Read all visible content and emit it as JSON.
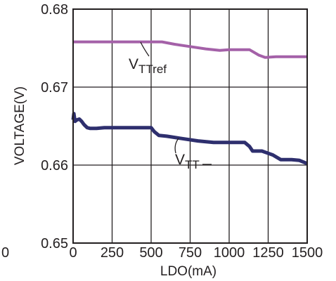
{
  "chart_data": {
    "type": "line",
    "xlabel": "LDO(mA)",
    "ylabel": "VOLTAGE(V)",
    "xlim": [
      0,
      1500
    ],
    "ylim": [
      0.65,
      0.68
    ],
    "xticks": [
      0,
      250,
      500,
      750,
      1000,
      1250,
      1500
    ],
    "xtick_labels": [
      "0",
      "250",
      "500",
      "750",
      "1000",
      "1250",
      "1500"
    ],
    "yticks": [
      0.65,
      0.66,
      0.67,
      0.68
    ],
    "ytick_labels": [
      "0.65",
      "0.66",
      "0.67",
      "0.68"
    ],
    "stray_label": "0",
    "grid": true,
    "series": [
      {
        "name": "VTTref",
        "label_main": "V",
        "label_sub": "TTref",
        "color": "#a461a8",
        "x": [
          0,
          100,
          200,
          300,
          400,
          500,
          570,
          650,
          750,
          850,
          940,
          1000,
          1050,
          1130,
          1190,
          1230,
          1300,
          1400,
          1500
        ],
        "y": [
          0.6758,
          0.6758,
          0.6758,
          0.6758,
          0.6758,
          0.6758,
          0.6758,
          0.6755,
          0.6752,
          0.6749,
          0.6747,
          0.6748,
          0.6748,
          0.6748,
          0.6741,
          0.6738,
          0.6739,
          0.6739,
          0.6739
        ]
      },
      {
        "name": "VTT",
        "label_main": "V",
        "label_sub": "TT",
        "color": "#2e2f6e",
        "x": [
          0,
          5,
          12,
          25,
          40,
          55,
          70,
          90,
          110,
          150,
          200,
          300,
          400,
          500,
          520,
          550,
          600,
          700,
          800,
          900,
          1000,
          1100,
          1130,
          1150,
          1210,
          1280,
          1330,
          1400,
          1450,
          1500
        ],
        "y": [
          0.6658,
          0.6666,
          0.6656,
          0.6658,
          0.6659,
          0.6656,
          0.6652,
          0.6648,
          0.6647,
          0.6647,
          0.6648,
          0.6648,
          0.6648,
          0.6648,
          0.6643,
          0.6638,
          0.6637,
          0.6634,
          0.6631,
          0.6629,
          0.6629,
          0.6629,
          0.6624,
          0.6618,
          0.6618,
          0.6613,
          0.6607,
          0.6607,
          0.6606,
          0.6602
        ]
      }
    ]
  }
}
